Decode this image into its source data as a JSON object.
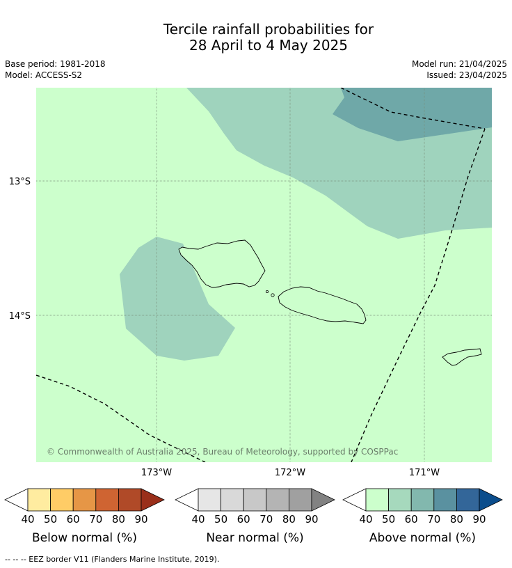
{
  "title_line1": "Tercile rainfall probabilities for",
  "title_line2": "28 April to 4 May 2025",
  "base_period": "Base period: 1981-2018",
  "model": "Model: ACCESS-S2",
  "model_run": "Model run: 21/04/2025",
  "issued": "Issued: 23/04/2025",
  "map": {
    "lat_labels": [
      "13°S",
      "14°S"
    ],
    "lon_labels": [
      "173°W",
      "172°W",
      "171°W"
    ],
    "copyright": "© Commonwealth of Australia 2025, Bureau of Meteorology, supported by COSPPac",
    "colors": {
      "background": "#ccffcc",
      "above_50": "#9fd3bd",
      "above_60": "#6fa8a8"
    }
  },
  "legends": [
    {
      "caption": "Below normal (%)",
      "ticks": [
        "40",
        "50",
        "60",
        "70",
        "80",
        "90"
      ],
      "colors": [
        "#ffffff",
        "#ffeca0",
        "#ffcc66",
        "#e69646",
        "#cf6432",
        "#b04a28",
        "#9a2f1a"
      ]
    },
    {
      "caption": "Near normal (%)",
      "ticks": [
        "40",
        "50",
        "60",
        "70",
        "80",
        "90"
      ],
      "colors": [
        "#ffffff",
        "#e6e6e6",
        "#d9d9d9",
        "#c8c8c8",
        "#b4b4b4",
        "#a0a0a0",
        "#828282"
      ]
    },
    {
      "caption": "Above normal (%)",
      "ticks": [
        "40",
        "50",
        "60",
        "70",
        "80",
        "90"
      ],
      "colors": [
        "#ffffff",
        "#ccffcc",
        "#a6d9bd",
        "#82b8ae",
        "#5a91a0",
        "#336699",
        "#0b4d8c"
      ]
    }
  ],
  "footnote": "--  --  -- EEZ border V11 (Flanders Marine Institute, 2019)."
}
